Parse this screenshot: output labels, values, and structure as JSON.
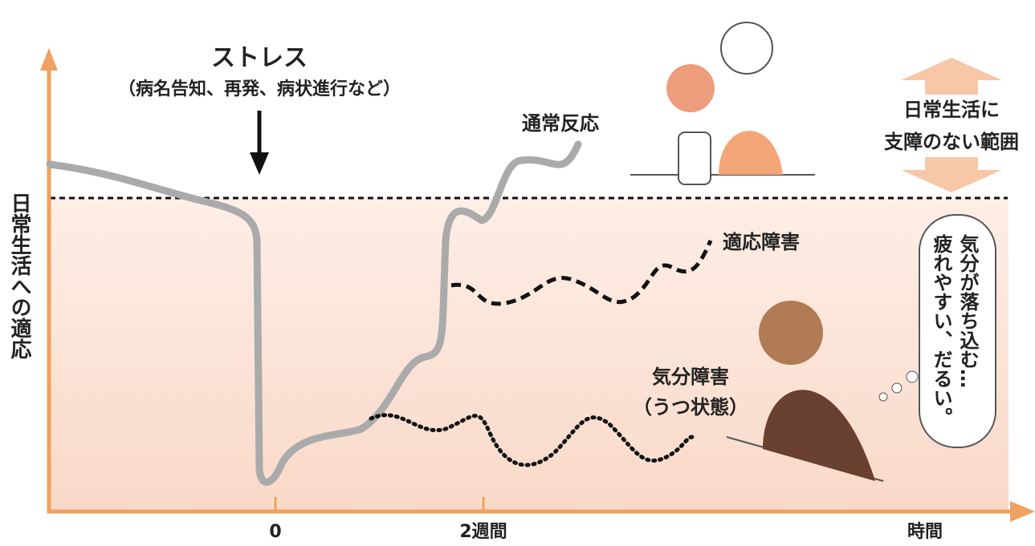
{
  "stress": {
    "label": "ストレス",
    "note": "（病名告知、再発、病状進行など）"
  },
  "curves": [
    {
      "label": "通常反応"
    },
    {
      "label": "適応障害"
    },
    {
      "label": "気分障害",
      "note": "（うつ状態）"
    }
  ],
  "range": {
    "lines": [
      "日常生活に",
      "支障のない範囲"
    ]
  },
  "thought": {
    "lines": [
      "気分が落ち込む…",
      "疲れやすい、だるい。"
    ]
  },
  "axis": {
    "y_label": "日常生活への適応",
    "x_ticks": [
      "0",
      "2週間"
    ],
    "x_label": "時間"
  }
}
